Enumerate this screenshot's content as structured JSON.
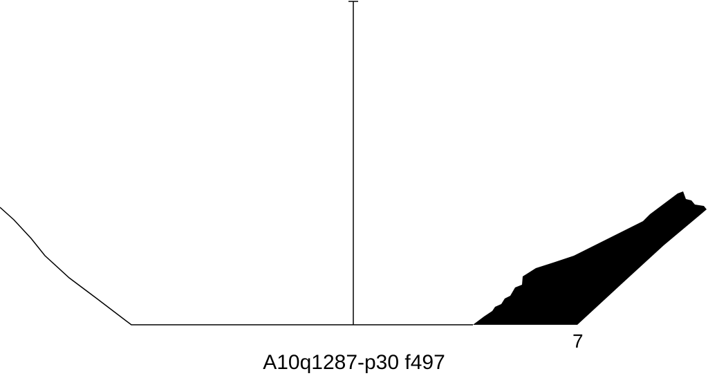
{
  "drawing": {
    "profile_number": "7",
    "caption": "A10q1287-p30 f497",
    "line_color": "#000000",
    "fill_color": "#000000"
  }
}
